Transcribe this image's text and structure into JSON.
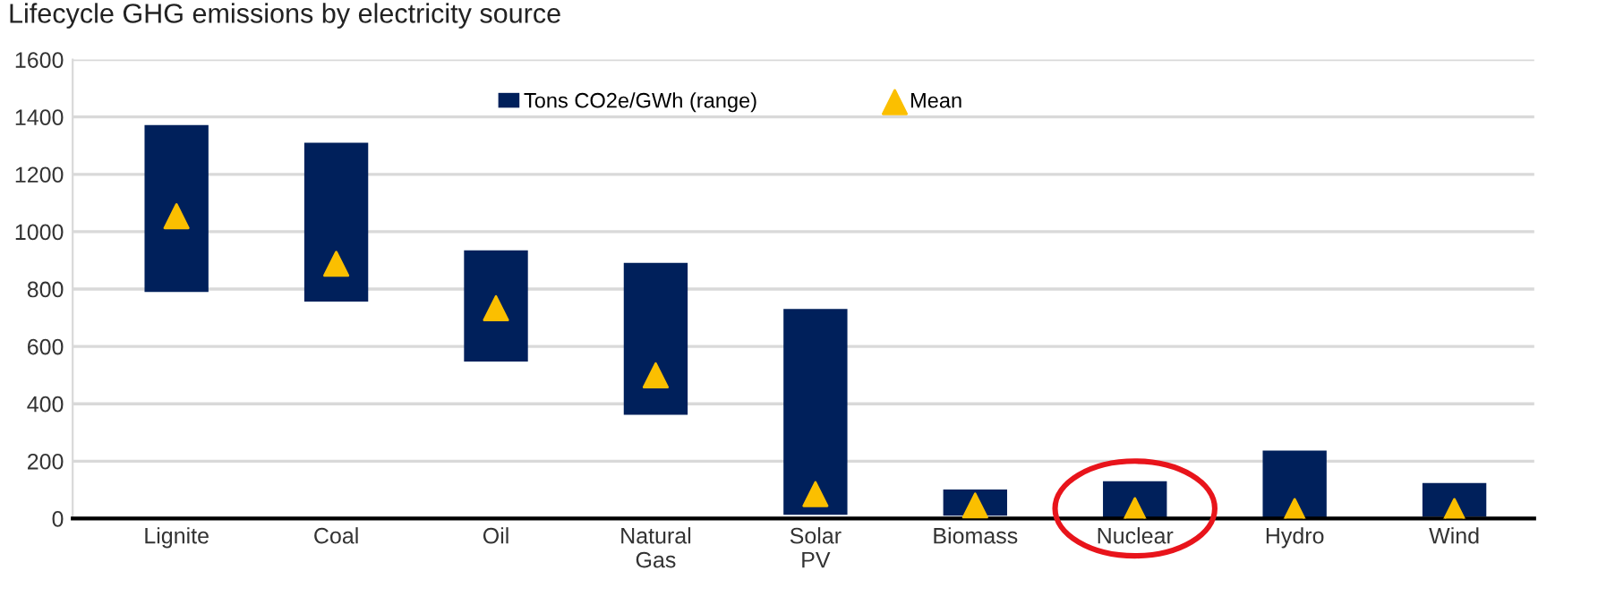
{
  "chart_data": {
    "type": "bar",
    "title": "Lifecycle GHG emissions by electricity source",
    "categories": [
      "Lignite",
      "Coal",
      "Oil",
      "Natural\nGas",
      "Solar\nPV",
      "Biomass",
      "Nuclear",
      "Hydro",
      "Wind"
    ],
    "series": [
      {
        "name": "Tons CO2e/GWh (range)",
        "color": "#00205b",
        "base": [
          790,
          756,
          547,
          362,
          13,
          10,
          2,
          2,
          6
        ],
        "values": [
          582,
          554,
          388,
          529,
          718,
          91,
          128,
          235,
          118
        ]
      },
      {
        "name": "Mean",
        "type": "scatter",
        "color": "#fbbf00",
        "marker": "triangle",
        "x": [
          "Lignite",
          "Coal",
          "Oil",
          "Natural\nGas",
          "Solar\nPV",
          "Biomass",
          "Nuclear",
          "Hydro",
          "Wind"
        ],
        "values": [
          1054,
          888,
          733,
          499,
          85,
          45,
          29,
          26,
          26
        ]
      }
    ],
    "ylim": [
      0,
      1600
    ],
    "yticks": [
      0,
      200,
      400,
      600,
      800,
      1000,
      1200,
      1400,
      1600
    ],
    "grid": "y",
    "legend": "top"
  }
}
